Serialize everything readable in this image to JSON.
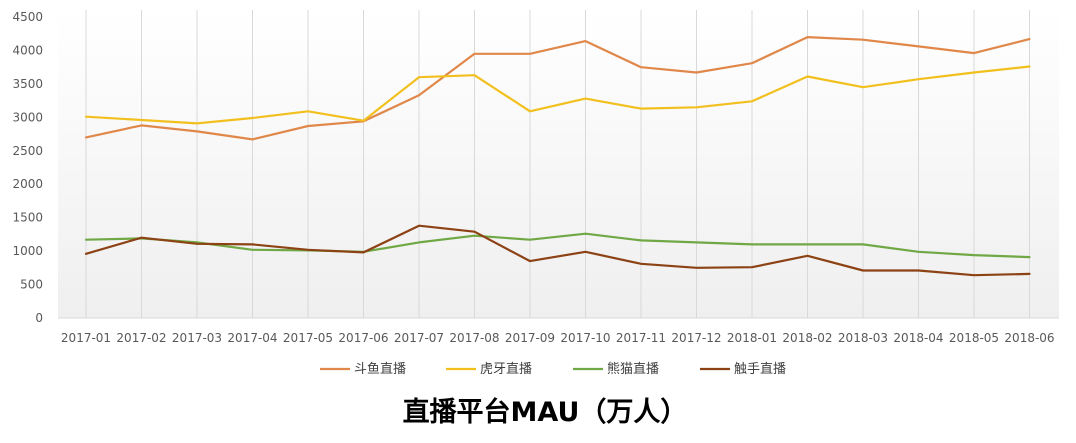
{
  "chart_data": {
    "type": "line",
    "title": "直播平台MAU（万人）",
    "xlabel": "",
    "ylabel": "",
    "ylim": [
      0,
      4500
    ],
    "yticks": [
      0,
      500,
      1000,
      1500,
      2000,
      2500,
      3000,
      3500,
      4000,
      4500
    ],
    "grid": "vertical",
    "legend": "bottom",
    "categories": [
      "2017-01",
      "2017-02",
      "2017-03",
      "2017-04",
      "2017-05",
      "2017-06",
      "2017-07",
      "2017-08",
      "2017-09",
      "2017-10",
      "2017-11",
      "2017-12",
      "2018-01",
      "2018-02",
      "2018-03",
      "2018-04",
      "2018-05",
      "2018-06"
    ],
    "series": [
      {
        "name": "斗鱼直播",
        "color": "#e0874a",
        "values": [
          2700,
          2880,
          2790,
          2670,
          2870,
          2940,
          3330,
          3950,
          3950,
          4140,
          3750,
          3670,
          3810,
          4200,
          4160,
          4060,
          3960,
          4170
        ]
      },
      {
        "name": "虎牙直播",
        "color": "#f2c01e",
        "values": [
          3010,
          2960,
          2910,
          2990,
          3090,
          2950,
          3600,
          3630,
          3090,
          3280,
          3130,
          3150,
          3240,
          3610,
          3450,
          3570,
          3670,
          3760
        ]
      },
      {
        "name": "熊猫直播",
        "color": "#70a845",
        "values": [
          1170,
          1190,
          1130,
          1020,
          1010,
          990,
          1130,
          1230,
          1170,
          1260,
          1160,
          1130,
          1100,
          1100,
          1100,
          990,
          940,
          910
        ]
      },
      {
        "name": "触手直播",
        "color": "#8c4214",
        "values": [
          960,
          1200,
          1110,
          1100,
          1020,
          980,
          1380,
          1290,
          850,
          990,
          810,
          750,
          760,
          930,
          710,
          710,
          640,
          660
        ]
      }
    ]
  }
}
